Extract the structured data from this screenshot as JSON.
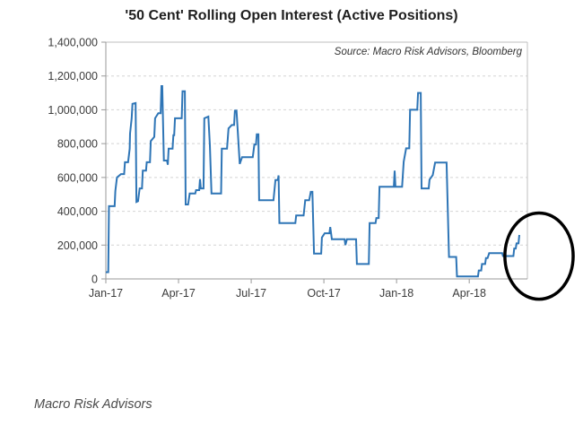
{
  "title": "'50 Cent' Rolling Open Interest (Active Positions)",
  "source_note": "Source: Macro Risk Advisors, Bloomberg",
  "caption": "Macro Risk Advisors",
  "colors": {
    "line": "#2E75B6",
    "grid": "#D4D4D4",
    "frame": "#BFBFBF",
    "axis": "#999999",
    "annotation": "#000000",
    "text": "#3b3b3b"
  },
  "chart_data": {
    "type": "line",
    "title": "'50 Cent' Rolling Open Interest (Active Positions)",
    "xlabel": "",
    "ylabel": "",
    "ylim": [
      0,
      1400000
    ],
    "y_tick_step": 200000,
    "y_tick_labels": [
      "0",
      "200,000",
      "400,000",
      "600,000",
      "800,000",
      "1,000,000",
      "1,200,000",
      "1,400,000"
    ],
    "x_tick_labels": [
      "Jan-17",
      "Apr-17",
      "Jul-17",
      "Oct-17",
      "Jan-18",
      "Apr-18"
    ],
    "x_tick_months": [
      0,
      3,
      6,
      9,
      12,
      15
    ],
    "x_domain_months": [
      0,
      17.4
    ],
    "x_epoch": "2017-01-01",
    "grid": "horizontal-dashed",
    "legend": "none",
    "annotation": {
      "shape": "ellipse",
      "purpose": "highlights final uptick in open interest",
      "center_month": 17.88,
      "center_value": 135000,
      "rx_months": 1.41,
      "ry_value": 255000,
      "stroke_width": 3.5
    },
    "series": [
      {
        "name": "'50 Cent' rolling open interest (active positions)",
        "points": [
          [
            "2017-01-01",
            40000
          ],
          [
            "2017-01-04",
            40000
          ],
          [
            "2017-01-05",
            430000
          ],
          [
            "2017-01-12",
            430000
          ],
          [
            "2017-01-13",
            520000
          ],
          [
            "2017-01-15",
            600000
          ],
          [
            "2017-01-20",
            620000
          ],
          [
            "2017-01-24",
            620000
          ],
          [
            "2017-01-25",
            690000
          ],
          [
            "2017-01-29",
            690000
          ],
          [
            "2017-01-31",
            770000
          ],
          [
            "2017-02-01",
            860000
          ],
          [
            "2017-02-03",
            950000
          ],
          [
            "2017-02-04",
            1035000
          ],
          [
            "2017-02-08",
            1040000
          ],
          [
            "2017-02-09",
            455000
          ],
          [
            "2017-02-11",
            460000
          ],
          [
            "2017-02-13",
            535000
          ],
          [
            "2017-02-16",
            535000
          ],
          [
            "2017-02-17",
            640000
          ],
          [
            "2017-02-21",
            640000
          ],
          [
            "2017-02-22",
            690000
          ],
          [
            "2017-02-26",
            690000
          ],
          [
            "2017-02-27",
            815000
          ],
          [
            "2017-03-01",
            840000
          ],
          [
            "2017-03-02",
            950000
          ],
          [
            "2017-03-06",
            980000
          ],
          [
            "2017-03-09",
            980000
          ],
          [
            "2017-03-10",
            1140000
          ],
          [
            "2017-03-11",
            1140000
          ],
          [
            "2017-03-13",
            700000
          ],
          [
            "2017-03-17",
            700000
          ],
          [
            "2017-03-18",
            675000
          ],
          [
            "2017-03-19",
            770000
          ],
          [
            "2017-03-24",
            770000
          ],
          [
            "2017-03-25",
            850000
          ],
          [
            "2017-03-26",
            850000
          ],
          [
            "2017-03-27",
            950000
          ],
          [
            "2017-04-05",
            950000
          ],
          [
            "2017-04-06",
            1110000
          ],
          [
            "2017-04-09",
            1110000
          ],
          [
            "2017-04-10",
            440000
          ],
          [
            "2017-04-13",
            440000
          ],
          [
            "2017-04-15",
            505000
          ],
          [
            "2017-04-22",
            505000
          ],
          [
            "2017-04-23",
            525000
          ],
          [
            "2017-04-27",
            525000
          ],
          [
            "2017-04-28",
            590000
          ],
          [
            "2017-04-29",
            535000
          ],
          [
            "2017-05-02",
            535000
          ],
          [
            "2017-05-03",
            950000
          ],
          [
            "2017-05-08",
            960000
          ],
          [
            "2017-05-10",
            790000
          ],
          [
            "2017-05-12",
            505000
          ],
          [
            "2017-05-24",
            505000
          ],
          [
            "2017-05-25",
            770000
          ],
          [
            "2017-06-01",
            770000
          ],
          [
            "2017-06-03",
            890000
          ],
          [
            "2017-06-07",
            910000
          ],
          [
            "2017-06-10",
            910000
          ],
          [
            "2017-06-11",
            995000
          ],
          [
            "2017-06-13",
            995000
          ],
          [
            "2017-06-17",
            680000
          ],
          [
            "2017-06-20",
            720000
          ],
          [
            "2017-07-03",
            720000
          ],
          [
            "2017-07-05",
            795000
          ],
          [
            "2017-07-07",
            795000
          ],
          [
            "2017-07-08",
            855000
          ],
          [
            "2017-07-10",
            855000
          ],
          [
            "2017-07-11",
            465000
          ],
          [
            "2017-07-29",
            465000
          ],
          [
            "2017-08-01",
            585000
          ],
          [
            "2017-08-04",
            585000
          ],
          [
            "2017-08-05",
            612000
          ],
          [
            "2017-08-06",
            330000
          ],
          [
            "2017-08-26",
            330000
          ],
          [
            "2017-08-27",
            375000
          ],
          [
            "2017-09-06",
            375000
          ],
          [
            "2017-09-08",
            465000
          ],
          [
            "2017-09-13",
            465000
          ],
          [
            "2017-09-15",
            515000
          ],
          [
            "2017-09-17",
            515000
          ],
          [
            "2017-09-19",
            150000
          ],
          [
            "2017-09-28",
            150000
          ],
          [
            "2017-09-29",
            245000
          ],
          [
            "2017-10-02",
            270000
          ],
          [
            "2017-10-08",
            270000
          ],
          [
            "2017-10-09",
            307000
          ],
          [
            "2017-10-11",
            235000
          ],
          [
            "2017-10-27",
            235000
          ],
          [
            "2017-10-28",
            200000
          ],
          [
            "2017-10-30",
            235000
          ],
          [
            "2017-11-11",
            235000
          ],
          [
            "2017-11-12",
            88000
          ],
          [
            "2017-11-27",
            88000
          ],
          [
            "2017-11-28",
            330000
          ],
          [
            "2017-12-05",
            330000
          ],
          [
            "2017-12-06",
            360000
          ],
          [
            "2017-12-09",
            360000
          ],
          [
            "2017-12-10",
            545000
          ],
          [
            "2017-12-28",
            545000
          ],
          [
            "2017-12-29",
            640000
          ],
          [
            "2017-12-30",
            545000
          ],
          [
            "2018-01-08",
            545000
          ],
          [
            "2018-01-10",
            693000
          ],
          [
            "2018-01-13",
            772000
          ],
          [
            "2018-01-17",
            772000
          ],
          [
            "2018-01-18",
            1000000
          ],
          [
            "2018-01-27",
            1000000
          ],
          [
            "2018-01-28",
            1100000
          ],
          [
            "2018-02-01",
            1100000
          ],
          [
            "2018-02-02",
            535000
          ],
          [
            "2018-02-11",
            535000
          ],
          [
            "2018-02-12",
            587000
          ],
          [
            "2018-02-16",
            614000
          ],
          [
            "2018-02-19",
            688000
          ],
          [
            "2018-03-03",
            688000
          ],
          [
            "2018-03-06",
            130000
          ],
          [
            "2018-03-15",
            130000
          ],
          [
            "2018-03-16",
            15000
          ],
          [
            "2018-04-12",
            15000
          ],
          [
            "2018-04-13",
            50000
          ],
          [
            "2018-04-16",
            50000
          ],
          [
            "2018-04-17",
            88000
          ],
          [
            "2018-04-21",
            88000
          ],
          [
            "2018-04-22",
            123000
          ],
          [
            "2018-04-24",
            123000
          ],
          [
            "2018-04-26",
            152000
          ],
          [
            "2018-05-12",
            152000
          ],
          [
            "2018-05-13",
            135000
          ],
          [
            "2018-05-26",
            135000
          ],
          [
            "2018-05-27",
            180000
          ],
          [
            "2018-05-29",
            180000
          ],
          [
            "2018-05-30",
            210000
          ],
          [
            "2018-06-02",
            210000
          ],
          [
            "2018-06-03",
            260000
          ]
        ]
      }
    ]
  }
}
